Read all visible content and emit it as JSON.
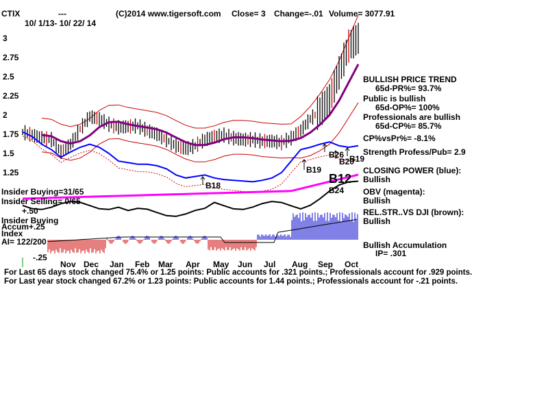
{
  "header": {
    "symbol": "CTIX",
    "dashes": "---",
    "copyright": "(C)2014 www.tigersoft.com",
    "close": "Close=  3",
    "change": "Change=-.01",
    "volume": "Volume= 3077.91",
    "date_range": "10/ 1/13- 10/ 22/ 14"
  },
  "chart_data": {
    "type": "line",
    "title": "",
    "xlabel": "",
    "ylabel": "",
    "ylim": [
      1.0,
      3.1
    ],
    "y_ticks": [
      3,
      2.75,
      2.5,
      2.25,
      2,
      1.75,
      1.5,
      1.25
    ],
    "y_tick_labels": [
      "3",
      "2.75",
      "2.5",
      "2.25",
      "2",
      "1.75",
      "1.5",
      "1.25"
    ],
    "x_ticks": [
      "Nov",
      "Dec",
      "Jan",
      "Feb",
      "Mar",
      "Apr",
      "May",
      "Jun",
      "Jul",
      "Aug",
      "Sep",
      "Oct"
    ],
    "series": [
      {
        "values": [
          1.78,
          1.74,
          1.7,
          1.68,
          1.52,
          1.62,
          1.82,
          1.98,
          1.95,
          1.88,
          1.84,
          1.85,
          1.86,
          1.8,
          1.75,
          1.68,
          1.6,
          1.56,
          1.6,
          1.68,
          1.72,
          1.74,
          1.7,
          1.68,
          1.68,
          1.66,
          1.66,
          1.64,
          1.7,
          1.8,
          1.95,
          2.05,
          2.2,
          2.55,
          2.9,
          3.0
        ]
      },
      {
        "values": [
          1.78,
          1.72,
          1.62,
          1.55,
          1.45,
          1.52,
          1.58,
          1.62,
          1.58,
          1.5,
          1.4,
          1.38,
          1.36,
          1.36,
          1.34,
          1.3,
          1.22,
          1.18,
          1.2,
          1.22,
          1.18,
          1.16,
          1.15,
          1.14,
          1.13,
          1.15,
          1.18,
          1.25,
          1.4,
          1.55,
          1.58,
          1.62,
          1.65,
          1.6,
          1.58,
          1.6
        ]
      }
    ],
    "annotations": [
      "B18",
      "B19",
      "B26",
      "B20",
      "B19",
      "B12",
      "B24"
    ]
  },
  "insider": {
    "buying": "Insider Buying=31/65",
    "selling": "Insider Selling= 0/65",
    "plus50": "+.50",
    "buying2": "Insider Buying",
    "accum": "Accum",
    "plus25": "+.25",
    "index": "Index",
    "ai": "AI= 122/200",
    "minus25": "-.25"
  },
  "right_panel": {
    "trend": "BULLISH PRICE TREND",
    "pr": "65d-PR%= 93.7%",
    "public": "Public is bullish",
    "op": "65d-OP%= 100%",
    "pros": "Professionals are bullish",
    "cp": "65d-CP%= 85.7%",
    "cpvspr": "CP%vsPr%= -8.1%",
    "strength": "Strength Profess/Pub= 2.9",
    "closing": "CLOSING POWER (blue):",
    "closing_val": "Bullish",
    "obv": "OBV (magenta):",
    "obv_val": "Bullish",
    "relstr": "REL.STR..VS DJI (brown):",
    "relstr_val": "Bullish",
    "accum": "Bullish Accumulation",
    "ip": "IP=  .301"
  },
  "footer": {
    "line1": "For Last 65 days stock changed  75.4% or  1.25 points:  Public accounts for  .321 points.;  Professionals account for  .929 points.",
    "line2": "For Last year stock changed  67.2% or  1.23 points:  Public accounts for  1.44 points.;  Professionals account for -.21 points."
  },
  "colors": {
    "price": "#000000",
    "bands": "#cc0000",
    "moving_avg": "#800080",
    "closing_power": "#0000ff",
    "obv": "#ff00ff",
    "accum_pos": "#0000cc",
    "accum_neg": "#cc0000"
  }
}
